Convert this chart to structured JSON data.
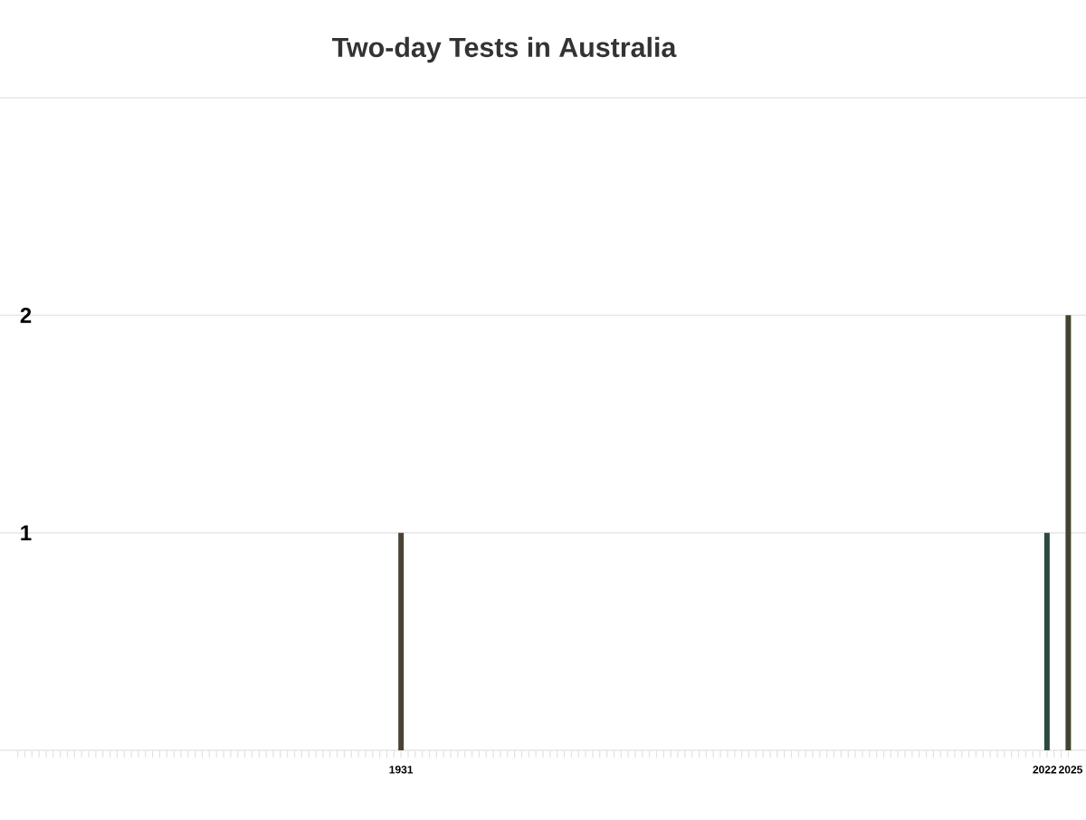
{
  "chart_data": {
    "type": "bar",
    "title": "Two-day Tests in Australia",
    "x": [
      1931,
      2022,
      2025
    ],
    "values": [
      1,
      1,
      2
    ],
    "colors": [
      "#4a4234",
      "#2b4a40",
      "#434330"
    ],
    "xlim": [
      1874.5,
      2027.5
    ],
    "xticks": [
      {
        "value": 1877,
        "label": null
      },
      {
        "value": 1878,
        "label": null
      },
      {
        "value": 1879,
        "label": null
      },
      {
        "value": 1880,
        "label": null
      },
      {
        "value": 1881,
        "label": null
      },
      {
        "value": 1882,
        "label": null
      },
      {
        "value": 1883,
        "label": null
      },
      {
        "value": 1884,
        "label": null
      },
      {
        "value": 1885,
        "label": null
      },
      {
        "value": 1886,
        "label": null
      },
      {
        "value": 1887,
        "label": null
      },
      {
        "value": 1888,
        "label": null
      },
      {
        "value": 1889,
        "label": null
      },
      {
        "value": 1890,
        "label": null
      },
      {
        "value": 1891,
        "label": null
      },
      {
        "value": 1892,
        "label": null
      },
      {
        "value": 1893,
        "label": null
      },
      {
        "value": 1894,
        "label": null
      },
      {
        "value": 1895,
        "label": null
      },
      {
        "value": 1896,
        "label": null
      },
      {
        "value": 1897,
        "label": null
      },
      {
        "value": 1898,
        "label": null
      },
      {
        "value": 1899,
        "label": null
      },
      {
        "value": 1900,
        "label": null
      },
      {
        "value": 1901,
        "label": null
      },
      {
        "value": 1902,
        "label": null
      },
      {
        "value": 1903,
        "label": null
      },
      {
        "value": 1904,
        "label": null
      },
      {
        "value": 1905,
        "label": null
      },
      {
        "value": 1906,
        "label": null
      },
      {
        "value": 1907,
        "label": null
      },
      {
        "value": 1908,
        "label": null
      },
      {
        "value": 1909,
        "label": null
      },
      {
        "value": 1910,
        "label": null
      },
      {
        "value": 1911,
        "label": null
      },
      {
        "value": 1912,
        "label": null
      },
      {
        "value": 1913,
        "label": null
      },
      {
        "value": 1914,
        "label": null
      },
      {
        "value": 1915,
        "label": null
      },
      {
        "value": 1916,
        "label": null
      },
      {
        "value": 1917,
        "label": null
      },
      {
        "value": 1918,
        "label": null
      },
      {
        "value": 1919,
        "label": null
      },
      {
        "value": 1920,
        "label": null
      },
      {
        "value": 1921,
        "label": null
      },
      {
        "value": 1922,
        "label": null
      },
      {
        "value": 1923,
        "label": null
      },
      {
        "value": 1924,
        "label": null
      },
      {
        "value": 1925,
        "label": null
      },
      {
        "value": 1926,
        "label": null
      },
      {
        "value": 1927,
        "label": null
      },
      {
        "value": 1928,
        "label": null
      },
      {
        "value": 1929,
        "label": null
      },
      {
        "value": 1930,
        "label": null
      },
      1931,
      {
        "value": 1932,
        "label": null
      },
      {
        "value": 1933,
        "label": null
      },
      {
        "value": 1934,
        "label": null
      },
      {
        "value": 1935,
        "label": null
      },
      {
        "value": 1936,
        "label": null
      },
      {
        "value": 1937,
        "label": null
      },
      {
        "value": 1938,
        "label": null
      },
      {
        "value": 1939,
        "label": null
      },
      {
        "value": 1940,
        "label": null
      },
      {
        "value": 1941,
        "label": null
      },
      {
        "value": 1942,
        "label": null
      },
      {
        "value": 1943,
        "label": null
      },
      {
        "value": 1944,
        "label": null
      },
      {
        "value": 1945,
        "label": null
      },
      {
        "value": 1946,
        "label": null
      },
      {
        "value": 1947,
        "label": null
      },
      {
        "value": 1948,
        "label": null
      },
      {
        "value": 1949,
        "label": null
      },
      {
        "value": 1950,
        "label": null
      },
      {
        "value": 1951,
        "label": null
      },
      {
        "value": 1952,
        "label": null
      },
      {
        "value": 1953,
        "label": null
      },
      {
        "value": 1954,
        "label": null
      },
      {
        "value": 1955,
        "label": null
      },
      {
        "value": 1956,
        "label": null
      },
      {
        "value": 1957,
        "label": null
      },
      {
        "value": 1958,
        "label": null
      },
      {
        "value": 1959,
        "label": null
      },
      {
        "value": 1960,
        "label": null
      },
      {
        "value": 1961,
        "label": null
      },
      {
        "value": 1962,
        "label": null
      },
      {
        "value": 1963,
        "label": null
      },
      {
        "value": 1964,
        "label": null
      },
      {
        "value": 1965,
        "label": null
      },
      {
        "value": 1966,
        "label": null
      },
      {
        "value": 1967,
        "label": null
      },
      {
        "value": 1968,
        "label": null
      },
      {
        "value": 1969,
        "label": null
      },
      {
        "value": 1970,
        "label": null
      },
      {
        "value": 1971,
        "label": null
      },
      {
        "value": 1972,
        "label": null
      },
      {
        "value": 1973,
        "label": null
      },
      {
        "value": 1974,
        "label": null
      },
      {
        "value": 1975,
        "label": null
      },
      {
        "value": 1976,
        "label": null
      },
      {
        "value": 1977,
        "label": null
      },
      {
        "value": 1978,
        "label": null
      },
      {
        "value": 1979,
        "label": null
      },
      {
        "value": 1980,
        "label": null
      },
      {
        "value": 1981,
        "label": null
      },
      {
        "value": 1982,
        "label": null
      },
      {
        "value": 1983,
        "label": null
      },
      {
        "value": 1984,
        "label": null
      },
      {
        "value": 1985,
        "label": null
      },
      {
        "value": 1986,
        "label": null
      },
      {
        "value": 1987,
        "label": null
      },
      {
        "value": 1988,
        "label": null
      },
      {
        "value": 1989,
        "label": null
      },
      {
        "value": 1990,
        "label": null
      },
      {
        "value": 1991,
        "label": null
      },
      {
        "value": 1992,
        "label": null
      },
      {
        "value": 1993,
        "label": null
      },
      {
        "value": 1994,
        "label": null
      },
      {
        "value": 1995,
        "label": null
      },
      {
        "value": 1996,
        "label": null
      },
      {
        "value": 1997,
        "label": null
      },
      {
        "value": 1998,
        "label": null
      },
      {
        "value": 1999,
        "label": null
      },
      {
        "value": 2000,
        "label": null
      },
      {
        "value": 2001,
        "label": null
      },
      {
        "value": 2002,
        "label": null
      },
      {
        "value": 2003,
        "label": null
      },
      {
        "value": 2004,
        "label": null
      },
      {
        "value": 2005,
        "label": null
      },
      {
        "value": 2006,
        "label": null
      },
      {
        "value": 2007,
        "label": null
      },
      {
        "value": 2008,
        "label": null
      },
      {
        "value": 2009,
        "label": null
      },
      {
        "value": 2010,
        "label": null
      },
      {
        "value": 2011,
        "label": null
      },
      {
        "value": 2012,
        "label": null
      },
      {
        "value": 2013,
        "label": null
      },
      {
        "value": 2014,
        "label": null
      },
      {
        "value": 2015,
        "label": null
      },
      {
        "value": 2016,
        "label": null
      },
      {
        "value": 2017,
        "label": null
      },
      {
        "value": 2018,
        "label": null
      },
      {
        "value": 2019,
        "label": null
      },
      {
        "value": 2020,
        "label": null
      },
      {
        "value": 2021,
        "label": null
      },
      2022,
      {
        "value": 2023,
        "label": null
      },
      {
        "value": 2024,
        "label": null
      },
      2025
    ],
    "ylim": [
      0,
      3
    ],
    "yticks": [
      1,
      2
    ],
    "grid": "y"
  }
}
